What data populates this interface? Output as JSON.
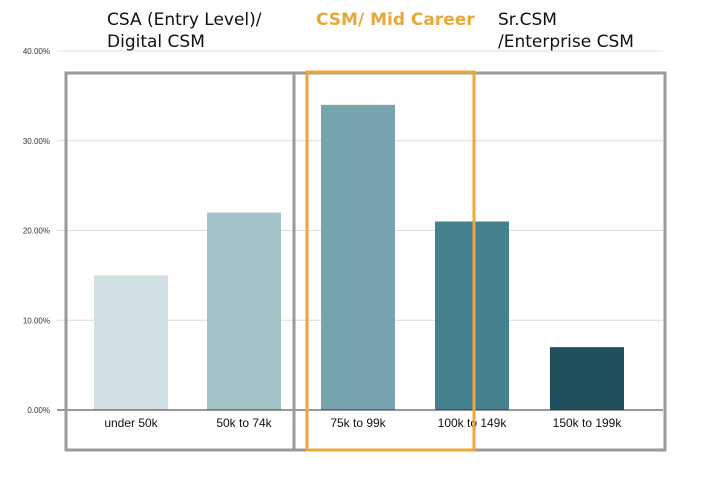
{
  "colors": {
    "grid": "#dcdcdc",
    "axis": "#333333",
    "entry_box": "#9a9a9a",
    "mid_box": "#e8a83a",
    "mid_label": "#e8a83a"
  },
  "group_labels": {
    "entry": {
      "line1": "CSA (Entry Level)/",
      "line2": "Digital CSM"
    },
    "mid": {
      "line1": "CSM/ Mid Career"
    },
    "senior": {
      "line1": "Sr.CSM",
      "line2": "/Enterprise CSM"
    }
  },
  "chart_data": {
    "type": "bar",
    "categories": [
      "under 50k",
      "50k to 74k",
      "75k to 99k",
      "100k to 149k",
      "150k to 199k"
    ],
    "values": [
      15,
      22,
      34,
      21,
      7
    ],
    "bar_colors": [
      "#d0e0e3",
      "#a4c3c8",
      "#76a5af",
      "#45818e",
      "#1e4f5a"
    ],
    "ylim": [
      0,
      40
    ],
    "yticks": [
      0,
      10,
      20,
      30,
      40
    ],
    "ytick_labels": [
      "0.00%",
      "10.00%",
      "20.00%",
      "30.00%",
      "40.00%"
    ],
    "grid": true,
    "title": "",
    "xlabel": "",
    "ylabel": ""
  }
}
